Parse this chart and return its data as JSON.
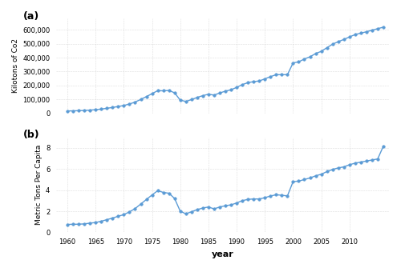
{
  "years": [
    1960,
    1961,
    1962,
    1963,
    1964,
    1965,
    1966,
    1967,
    1968,
    1969,
    1970,
    1971,
    1972,
    1973,
    1974,
    1975,
    1976,
    1977,
    1978,
    1979,
    1980,
    1981,
    1982,
    1983,
    1984,
    1985,
    1986,
    1987,
    1988,
    1989,
    1990,
    1991,
    1992,
    1993,
    1994,
    1995,
    1996,
    1997,
    1998,
    1999,
    2000,
    2001,
    2002,
    2003,
    2004,
    2005,
    2006,
    2007,
    2008,
    2009,
    2010,
    2011,
    2012,
    2013,
    2014,
    2015,
    2016
  ],
  "kilotons": [
    18247,
    19279,
    20311,
    21890,
    24530,
    27170,
    31780,
    37290,
    43620,
    50070,
    57520,
    68200,
    81950,
    101000,
    121000,
    142200,
    163400,
    162600,
    164800,
    148200,
    95600,
    86500,
    100000,
    115000,
    128000,
    138000,
    132000,
    147000,
    160000,
    170000,
    187000,
    207000,
    221000,
    228000,
    233000,
    248000,
    264000,
    278000,
    278000,
    278000,
    362000,
    370000,
    390000,
    406000,
    429000,
    445000,
    471000,
    496000,
    514000,
    530000,
    548000,
    565000,
    575000,
    585000,
    596000,
    607000,
    618000
  ],
  "per_capita": [
    0.75,
    0.76,
    0.77,
    0.8,
    0.87,
    0.93,
    1.05,
    1.2,
    1.35,
    1.52,
    1.68,
    1.94,
    2.25,
    2.68,
    3.11,
    3.54,
    3.94,
    3.78,
    3.7,
    3.2,
    2.0,
    1.75,
    1.95,
    2.15,
    2.3,
    2.4,
    2.22,
    2.4,
    2.52,
    2.6,
    2.78,
    3.0,
    3.12,
    3.16,
    3.16,
    3.28,
    3.44,
    3.56,
    3.51,
    3.45,
    4.8,
    4.85,
    5.0,
    5.15,
    5.35,
    5.5,
    5.75,
    5.95,
    6.1,
    6.2,
    6.4,
    6.55,
    6.65,
    6.75,
    6.85,
    6.95,
    8.15
  ],
  "line_color": "#5b9bd5",
  "marker_color": "#5b9bd5",
  "background_color": "#ffffff",
  "grid_color": "#cccccc",
  "ylabel_a": "Kilotons of Co2",
  "ylabel_b": "Metric Tons Per Capita",
  "xlabel": "year",
  "label_a": "(a)",
  "label_b": "(b)",
  "xlim": [
    1958,
    2017
  ],
  "ylim_a": [
    0,
    680000
  ],
  "ylim_b": [
    0,
    9
  ],
  "yticks_a": [
    0,
    100000,
    200000,
    300000,
    400000,
    500000,
    600000
  ],
  "yticks_b": [
    0,
    2,
    4,
    6,
    8
  ],
  "xticks": [
    1960,
    1965,
    1970,
    1975,
    1980,
    1985,
    1990,
    1995,
    2000,
    2005,
    2010
  ]
}
